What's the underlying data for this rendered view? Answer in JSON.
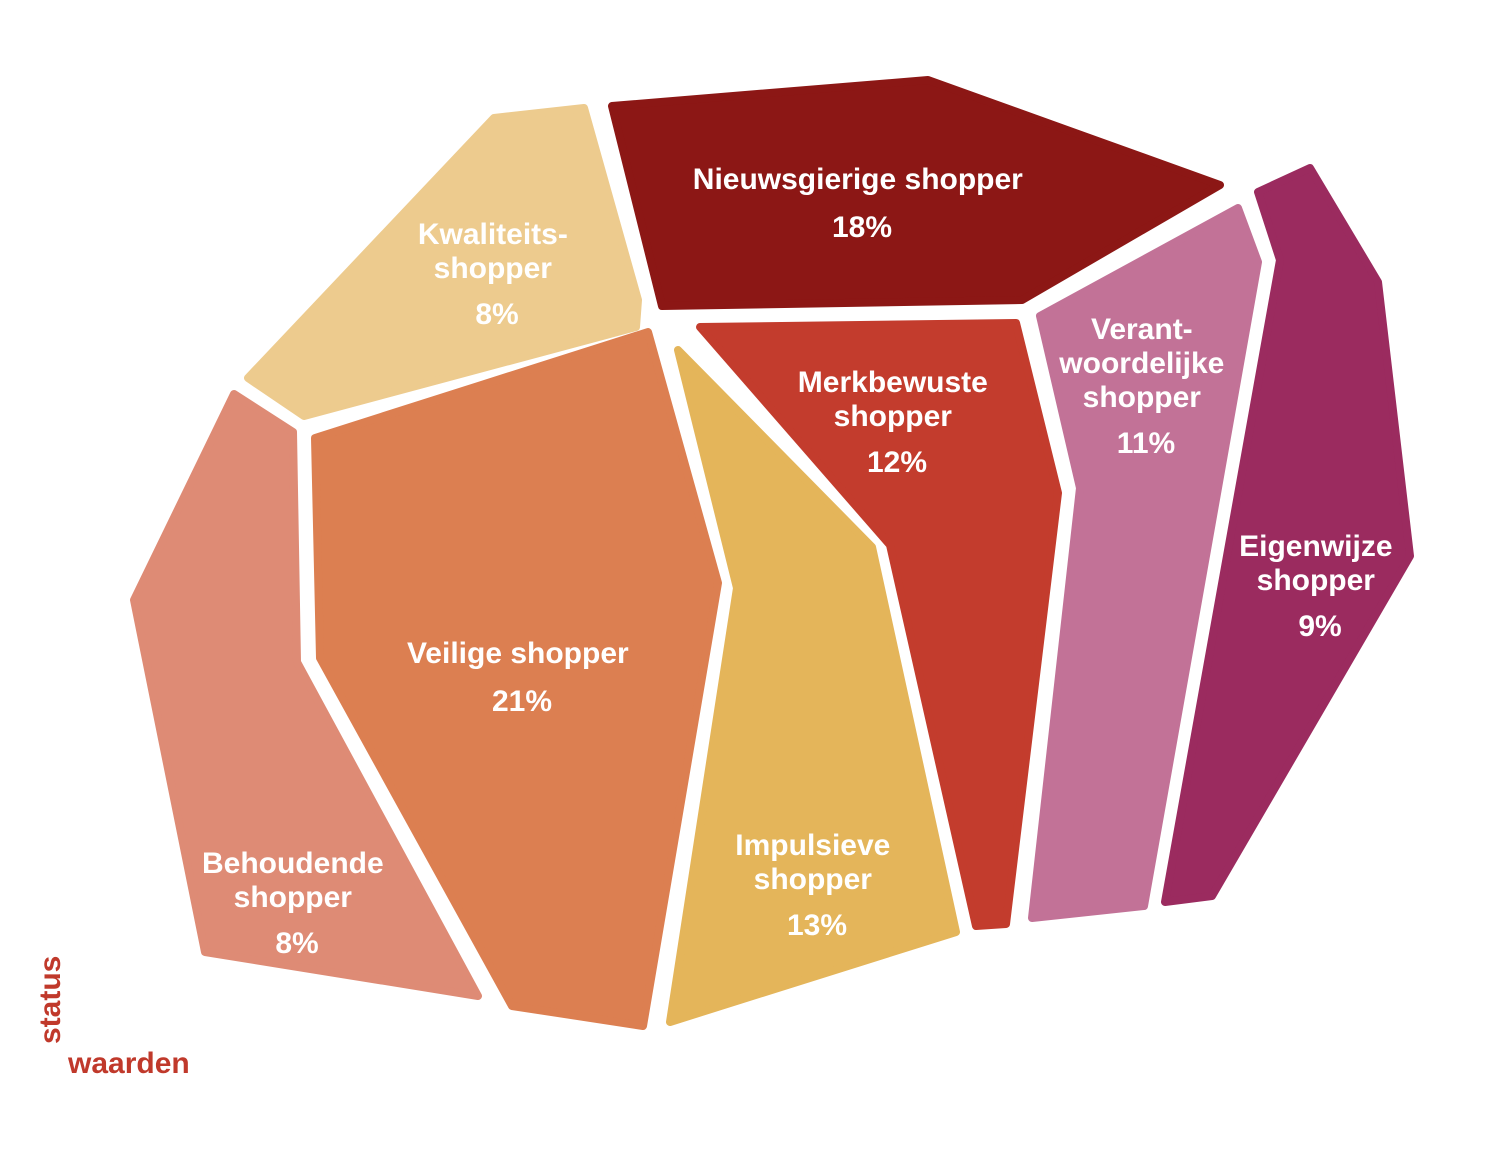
{
  "segments": [
    {
      "key": "kwaliteits",
      "lines": [
        "Kwaliteits-",
        "shopper"
      ],
      "percent": "8%",
      "value": 8,
      "color": "#EDCB8E"
    },
    {
      "key": "nieuwsgierige",
      "lines": [
        "Nieuwsgierige shopper"
      ],
      "percent": "18%",
      "value": 18,
      "color": "#8C1715"
    },
    {
      "key": "behoudende",
      "lines": [
        "Behoudende",
        "shopper"
      ],
      "percent": "8%",
      "value": 8,
      "color": "#DE8B75"
    },
    {
      "key": "veilige",
      "lines": [
        "Veilige shopper"
      ],
      "percent": "21%",
      "value": 21,
      "color": "#DC7F51"
    },
    {
      "key": "impulsieve",
      "lines": [
        "Impulsieve",
        "shopper"
      ],
      "percent": "13%",
      "value": 13,
      "color": "#E4B55A"
    },
    {
      "key": "merkbewuste",
      "lines": [
        "Merkbewuste",
        "shopper"
      ],
      "percent": "12%",
      "value": 12,
      "color": "#C33C2D"
    },
    {
      "key": "verantwoordelijke",
      "lines": [
        "Verant-",
        "woordelijke",
        "shopper"
      ],
      "percent": "11%",
      "value": 11,
      "color": "#C27297"
    },
    {
      "key": "eigenwijze",
      "lines": [
        "Eigenwijze",
        "shopper"
      ],
      "percent": "9%",
      "value": 9,
      "color": "#9B2B5F"
    }
  ],
  "axes": {
    "vertical": "status",
    "horizontal": "waarden"
  }
}
